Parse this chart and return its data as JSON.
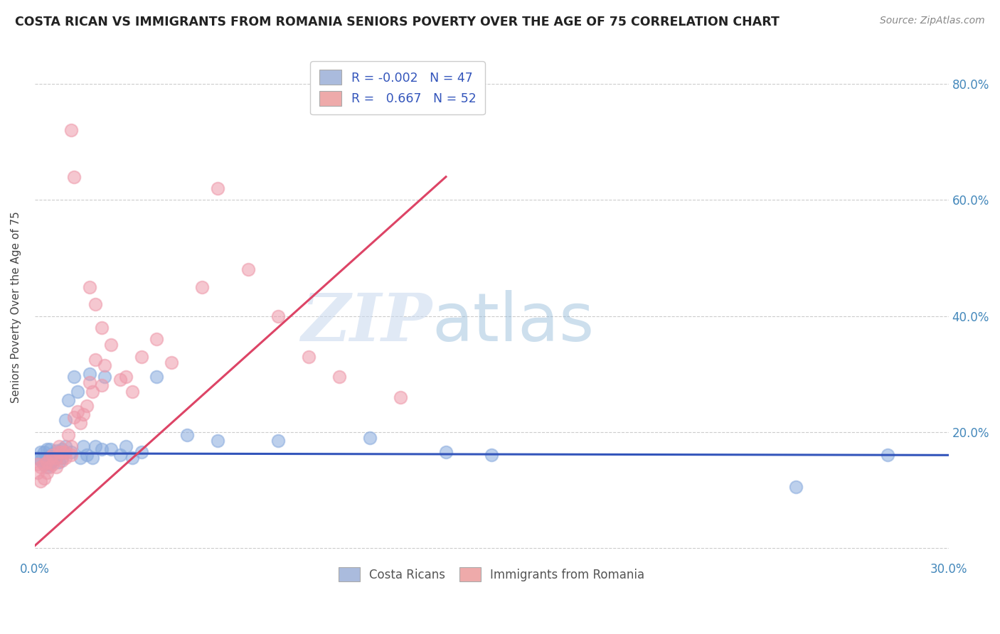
{
  "title": "COSTA RICAN VS IMMIGRANTS FROM ROMANIA SENIORS POVERTY OVER THE AGE OF 75 CORRELATION CHART",
  "source": "Source: ZipAtlas.com",
  "ylabel": "Seniors Poverty Over the Age of 75",
  "xlim": [
    0.0,
    0.3
  ],
  "ylim": [
    -0.02,
    0.85
  ],
  "xticks": [
    0.0,
    0.05,
    0.1,
    0.15,
    0.2,
    0.25,
    0.3
  ],
  "xtick_labels": [
    "0.0%",
    "",
    "",
    "",
    "",
    "",
    "30.0%"
  ],
  "ytick_positions": [
    0.0,
    0.2,
    0.4,
    0.6,
    0.8
  ],
  "ytick_labels": [
    "",
    "20.0%",
    "40.0%",
    "60.0%",
    "80.0%"
  ],
  "legend_blue_r": "-0.002",
  "legend_blue_n": "47",
  "legend_pink_r": "0.667",
  "legend_pink_n": "52",
  "blue_scatter_color": "#88AADD",
  "pink_scatter_color": "#EE99AA",
  "blue_line_color": "#3355BB",
  "pink_line_color": "#DD4466",
  "watermark_zip": "ZIP",
  "watermark_atlas": "atlas",
  "blue_scatter_x": [
    0.001,
    0.002,
    0.002,
    0.003,
    0.003,
    0.004,
    0.004,
    0.004,
    0.005,
    0.005,
    0.005,
    0.006,
    0.006,
    0.007,
    0.007,
    0.008,
    0.008,
    0.009,
    0.009,
    0.01,
    0.01,
    0.011,
    0.012,
    0.013,
    0.014,
    0.015,
    0.016,
    0.017,
    0.018,
    0.019,
    0.02,
    0.022,
    0.023,
    0.025,
    0.028,
    0.03,
    0.032,
    0.035,
    0.04,
    0.05,
    0.06,
    0.08,
    0.11,
    0.135,
    0.15,
    0.25,
    0.28
  ],
  "blue_scatter_y": [
    0.155,
    0.15,
    0.165,
    0.145,
    0.165,
    0.14,
    0.155,
    0.17,
    0.145,
    0.158,
    0.17,
    0.15,
    0.162,
    0.155,
    0.168,
    0.148,
    0.165,
    0.155,
    0.17,
    0.175,
    0.22,
    0.255,
    0.165,
    0.295,
    0.27,
    0.155,
    0.175,
    0.16,
    0.3,
    0.155,
    0.175,
    0.17,
    0.295,
    0.17,
    0.16,
    0.175,
    0.155,
    0.165,
    0.295,
    0.195,
    0.185,
    0.185,
    0.19,
    0.165,
    0.16,
    0.105,
    0.16
  ],
  "pink_scatter_x": [
    0.001,
    0.001,
    0.002,
    0.002,
    0.003,
    0.003,
    0.004,
    0.004,
    0.005,
    0.005,
    0.006,
    0.006,
    0.007,
    0.007,
    0.008,
    0.008,
    0.009,
    0.009,
    0.01,
    0.01,
    0.011,
    0.012,
    0.012,
    0.013,
    0.014,
    0.015,
    0.016,
    0.017,
    0.018,
    0.019,
    0.02,
    0.022,
    0.023,
    0.025,
    0.028,
    0.03,
    0.032,
    0.035,
    0.04,
    0.045,
    0.055,
    0.06,
    0.07,
    0.08,
    0.09,
    0.1,
    0.12,
    0.012,
    0.013,
    0.018,
    0.02,
    0.022
  ],
  "pink_scatter_y": [
    0.13,
    0.145,
    0.115,
    0.14,
    0.12,
    0.145,
    0.13,
    0.148,
    0.155,
    0.14,
    0.145,
    0.16,
    0.14,
    0.155,
    0.165,
    0.175,
    0.15,
    0.165,
    0.155,
    0.165,
    0.195,
    0.16,
    0.175,
    0.225,
    0.235,
    0.215,
    0.23,
    0.245,
    0.285,
    0.27,
    0.325,
    0.28,
    0.315,
    0.35,
    0.29,
    0.295,
    0.27,
    0.33,
    0.36,
    0.32,
    0.45,
    0.62,
    0.48,
    0.4,
    0.33,
    0.295,
    0.26,
    0.72,
    0.64,
    0.45,
    0.42,
    0.38
  ],
  "blue_line_x": [
    0.0,
    0.3
  ],
  "blue_line_y": [
    0.163,
    0.16
  ],
  "pink_line_x": [
    -0.005,
    0.135
  ],
  "pink_line_y": [
    -0.02,
    0.64
  ]
}
